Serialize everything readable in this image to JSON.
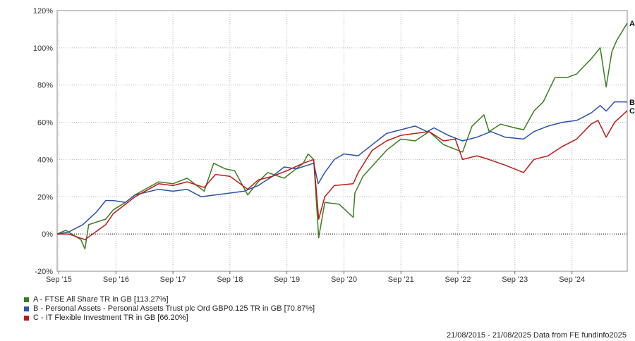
{
  "chart_data": {
    "type": "line",
    "title": "",
    "xlabel": "",
    "ylabel": "",
    "ylim": [
      -20,
      120
    ],
    "y_ticks": [
      -20,
      0,
      20,
      40,
      60,
      80,
      100,
      120
    ],
    "y_tick_labels": [
      "-20%",
      "0%",
      "20%",
      "40%",
      "60%",
      "80%",
      "100%",
      "120%"
    ],
    "x_range": [
      "2015-08-21",
      "2025-08-21"
    ],
    "x_ticks": [
      {
        "date": "2015-09-01",
        "label": "Sep '15"
      },
      {
        "date": "2016-09-01",
        "label": "Sep '16"
      },
      {
        "date": "2017-09-01",
        "label": "Sep '17"
      },
      {
        "date": "2018-09-01",
        "label": "Sep '18"
      },
      {
        "date": "2019-09-01",
        "label": "Sep '19"
      },
      {
        "date": "2020-09-01",
        "label": "Sep '20"
      },
      {
        "date": "2021-09-01",
        "label": "Sep '21"
      },
      {
        "date": "2022-09-01",
        "label": "Sep '22"
      },
      {
        "date": "2023-09-01",
        "label": "Sep '23"
      },
      {
        "date": "2024-09-01",
        "label": "Sep '24"
      }
    ],
    "grid": true,
    "zero_line": "dotted",
    "legend_position": "bottom-left",
    "series": [
      {
        "id": "A",
        "name": "A - FTSE All Share TR in GB [113.27%]",
        "color": "#3a7d1e",
        "points": [
          [
            "2015-08-21",
            0
          ],
          [
            "2015-10-15",
            2
          ],
          [
            "2016-01-20",
            -3
          ],
          [
            "2016-02-15",
            -8
          ],
          [
            "2016-03-10",
            5
          ],
          [
            "2016-06-27",
            8
          ],
          [
            "2016-08-15",
            13
          ],
          [
            "2016-11-01",
            17
          ],
          [
            "2017-01-01",
            21
          ],
          [
            "2017-06-01",
            28
          ],
          [
            "2017-09-01",
            27
          ],
          [
            "2017-12-01",
            30
          ],
          [
            "2018-03-20",
            23
          ],
          [
            "2018-05-20",
            38
          ],
          [
            "2018-08-01",
            35
          ],
          [
            "2018-10-01",
            34
          ],
          [
            "2018-12-24",
            21
          ],
          [
            "2019-03-01",
            28
          ],
          [
            "2019-05-01",
            33
          ],
          [
            "2019-08-15",
            30
          ],
          [
            "2019-12-15",
            38
          ],
          [
            "2020-01-15",
            43
          ],
          [
            "2020-02-20",
            40
          ],
          [
            "2020-03-23",
            -2
          ],
          [
            "2020-05-01",
            17
          ],
          [
            "2020-08-01",
            16
          ],
          [
            "2020-10-30",
            9
          ],
          [
            "2020-11-10",
            22
          ],
          [
            "2021-01-01",
            31
          ],
          [
            "2021-06-01",
            45
          ],
          [
            "2021-09-01",
            51
          ],
          [
            "2021-12-01",
            50
          ],
          [
            "2022-03-01",
            55
          ],
          [
            "2022-06-01",
            48
          ],
          [
            "2022-10-01",
            44
          ],
          [
            "2022-12-01",
            58
          ],
          [
            "2023-02-15",
            64
          ],
          [
            "2023-03-20",
            55
          ],
          [
            "2023-06-01",
            59
          ],
          [
            "2023-09-01",
            57
          ],
          [
            "2023-10-27",
            56
          ],
          [
            "2024-01-01",
            66
          ],
          [
            "2024-03-01",
            71
          ],
          [
            "2024-05-15",
            84
          ],
          [
            "2024-08-01",
            84
          ],
          [
            "2024-10-01",
            86
          ],
          [
            "2025-01-01",
            94
          ],
          [
            "2025-03-01",
            100
          ],
          [
            "2025-04-08",
            79
          ],
          [
            "2025-05-15",
            98
          ],
          [
            "2025-06-15",
            104
          ],
          [
            "2025-08-21",
            113.27
          ]
        ]
      },
      {
        "id": "B",
        "name": "B - Personal Assets - Personal Assets Trust plc Ord GBP0.125 TR in GB [70.87%]",
        "color": "#2a52a8",
        "points": [
          [
            "2015-08-21",
            0
          ],
          [
            "2015-11-01",
            1
          ],
          [
            "2016-02-01",
            5
          ],
          [
            "2016-05-01",
            12
          ],
          [
            "2016-06-27",
            18
          ],
          [
            "2016-08-15",
            18
          ],
          [
            "2016-11-01",
            17
          ],
          [
            "2017-01-01",
            21
          ],
          [
            "2017-06-01",
            24
          ],
          [
            "2017-09-01",
            23
          ],
          [
            "2017-12-01",
            24
          ],
          [
            "2018-03-01",
            20
          ],
          [
            "2018-06-01",
            21
          ],
          [
            "2018-09-01",
            22
          ],
          [
            "2018-12-01",
            23
          ],
          [
            "2019-03-01",
            26
          ],
          [
            "2019-06-01",
            31
          ],
          [
            "2019-08-15",
            36
          ],
          [
            "2019-11-01",
            35
          ],
          [
            "2020-02-20",
            38
          ],
          [
            "2020-03-20",
            27
          ],
          [
            "2020-05-01",
            33
          ],
          [
            "2020-07-01",
            40
          ],
          [
            "2020-09-01",
            43
          ],
          [
            "2020-12-01",
            42
          ],
          [
            "2021-03-01",
            48
          ],
          [
            "2021-06-01",
            54
          ],
          [
            "2021-09-01",
            56
          ],
          [
            "2021-12-01",
            58
          ],
          [
            "2022-02-15",
            55
          ],
          [
            "2022-04-01",
            57
          ],
          [
            "2022-07-01",
            53
          ],
          [
            "2022-10-01",
            50
          ],
          [
            "2023-01-01",
            52
          ],
          [
            "2023-04-01",
            55
          ],
          [
            "2023-07-01",
            52
          ],
          [
            "2023-10-27",
            51
          ],
          [
            "2024-01-01",
            55
          ],
          [
            "2024-04-01",
            58
          ],
          [
            "2024-07-01",
            60
          ],
          [
            "2024-10-01",
            61
          ],
          [
            "2025-01-01",
            65
          ],
          [
            "2025-03-01",
            69
          ],
          [
            "2025-04-08",
            66
          ],
          [
            "2025-06-01",
            71
          ],
          [
            "2025-08-21",
            70.87
          ]
        ]
      },
      {
        "id": "C",
        "name": "C - IT Flexible Investment TR in GB [66.20%]",
        "color": "#c01818",
        "points": [
          [
            "2015-08-21",
            0
          ],
          [
            "2015-11-01",
            0
          ],
          [
            "2016-02-15",
            -3
          ],
          [
            "2016-06-27",
            5
          ],
          [
            "2016-08-15",
            11
          ],
          [
            "2016-11-01",
            16
          ],
          [
            "2017-01-01",
            20
          ],
          [
            "2017-06-01",
            27
          ],
          [
            "2017-09-01",
            26
          ],
          [
            "2017-12-01",
            28
          ],
          [
            "2018-03-20",
            25
          ],
          [
            "2018-06-01",
            32
          ],
          [
            "2018-09-01",
            31
          ],
          [
            "2018-12-24",
            24
          ],
          [
            "2019-03-01",
            29
          ],
          [
            "2019-06-01",
            31
          ],
          [
            "2019-09-01",
            34
          ],
          [
            "2019-12-15",
            38
          ],
          [
            "2020-02-20",
            40
          ],
          [
            "2020-03-23",
            8
          ],
          [
            "2020-05-01",
            20
          ],
          [
            "2020-07-01",
            26
          ],
          [
            "2020-10-30",
            27
          ],
          [
            "2020-12-01",
            33
          ],
          [
            "2021-03-01",
            45
          ],
          [
            "2021-06-01",
            50
          ],
          [
            "2021-09-01",
            53
          ],
          [
            "2021-12-01",
            54
          ],
          [
            "2022-03-01",
            55
          ],
          [
            "2022-06-01",
            50
          ],
          [
            "2022-08-15",
            51
          ],
          [
            "2022-10-01",
            40
          ],
          [
            "2023-01-01",
            42
          ],
          [
            "2023-03-20",
            40
          ],
          [
            "2023-07-01",
            37
          ],
          [
            "2023-10-27",
            33
          ],
          [
            "2024-01-01",
            40
          ],
          [
            "2024-04-01",
            42
          ],
          [
            "2024-07-01",
            47
          ],
          [
            "2024-10-01",
            51
          ],
          [
            "2025-01-01",
            59
          ],
          [
            "2025-02-15",
            61
          ],
          [
            "2025-04-08",
            52
          ],
          [
            "2025-06-01",
            60
          ],
          [
            "2025-08-21",
            66.2
          ]
        ]
      }
    ],
    "end_labels": [
      "A",
      "B",
      "C"
    ],
    "source": "21/08/2015 - 21/08/2025 Data from FE fundinfo2025"
  }
}
